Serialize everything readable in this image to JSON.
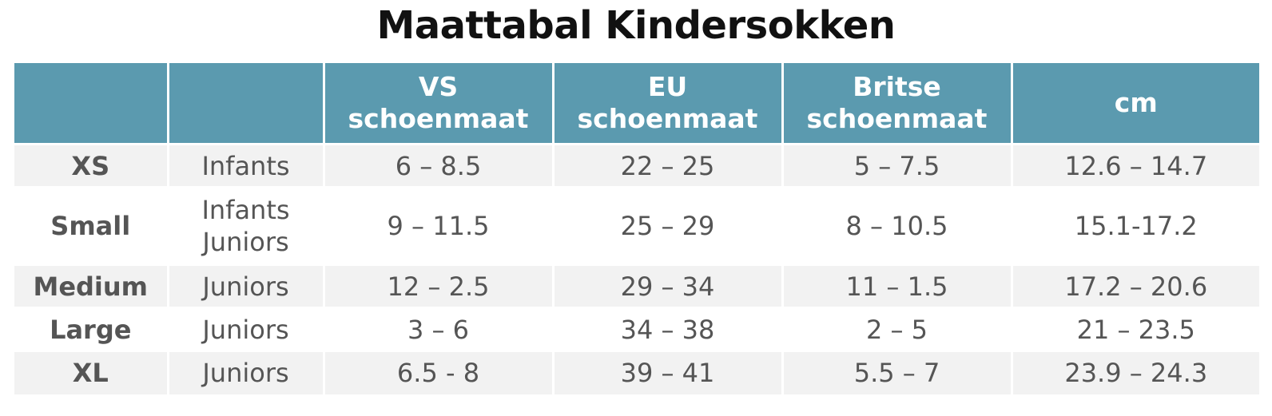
{
  "title": "Maattabal Kindersokken",
  "header": {
    "col_size": "",
    "col_age": "",
    "col_us": [
      "VS",
      "schoenmaat"
    ],
    "col_eu": [
      "EU",
      "schoenmaat"
    ],
    "col_uk": [
      "Britse",
      "schoenmaat"
    ],
    "col_cm": "cm"
  },
  "rows": [
    {
      "size": "XS",
      "age": [
        "Infants"
      ],
      "us": "6 – 8.5",
      "eu": "22 – 25",
      "uk": "5 – 7.5",
      "cm": "12.6 – 14.7"
    },
    {
      "size": "Small",
      "age": [
        "Infants",
        "Juniors"
      ],
      "us": "9 – 11.5",
      "eu": "25 – 29",
      "uk": "8 – 10.5",
      "cm": "15.1-17.2"
    },
    {
      "size": "Medium",
      "age": [
        "Juniors"
      ],
      "us": "12 – 2.5",
      "eu": "29 – 34",
      "uk": "11 – 1.5",
      "cm": "17.2 – 20.6"
    },
    {
      "size": "Large",
      "age": [
        "Juniors"
      ],
      "us": "3 – 6",
      "eu": "34 – 38",
      "uk": "2 – 5",
      "cm": "21 – 23.5"
    },
    {
      "size": "XL",
      "age": [
        "Juniors"
      ],
      "us": "6.5 - 8",
      "eu": "39 – 41",
      "uk": "5.5 – 7",
      "cm": "23.9 – 24.3"
    }
  ],
  "colors": {
    "header_bg": "#5b9aaf",
    "row_shade": "#f2f2f2",
    "text": "#555555"
  }
}
